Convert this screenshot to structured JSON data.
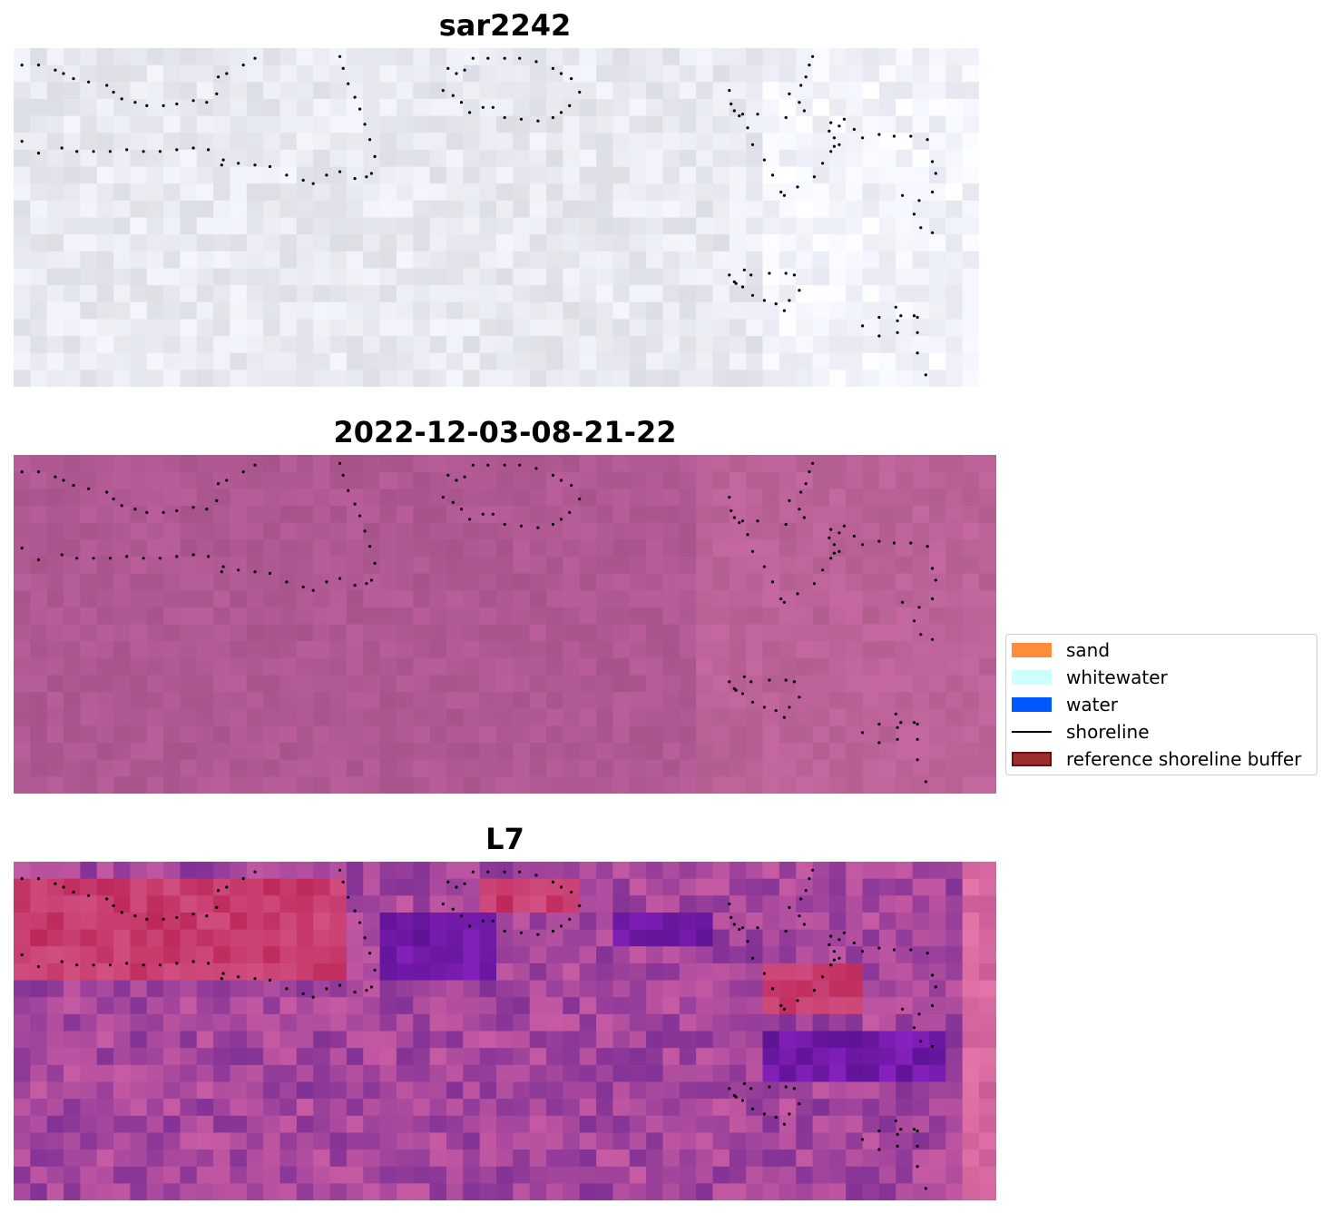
{
  "panels": [
    {
      "title": "sar2242",
      "palette": "sar"
    },
    {
      "title": "2022-12-03-08-21-22",
      "palette": "rgb"
    },
    {
      "title": "L7",
      "palette": "l7"
    }
  ],
  "legend": {
    "items": [
      {
        "label": "sand",
        "kind": "patch",
        "color": "#ff8c3d"
      },
      {
        "label": "whitewater",
        "kind": "patch",
        "color": "#ccffff"
      },
      {
        "label": "water",
        "kind": "patch",
        "color": "#0058ff"
      },
      {
        "label": "shoreline",
        "kind": "line",
        "color": "#000000"
      },
      {
        "label": "reference shoreline buffer",
        "kind": "patch",
        "color": "#9b2d2d",
        "edge": "#6a0f0f"
      }
    ]
  },
  "chart_data": {
    "type": "heatmap",
    "grid_cols": 58,
    "grid_rows": 20,
    "axes_visible": false,
    "shoreline_points": [
      [
        0.5,
        1
      ],
      [
        1.5,
        1
      ],
      [
        2.5,
        1.3
      ],
      [
        3,
        1.5
      ],
      [
        3.6,
        1.8
      ],
      [
        4.5,
        2
      ],
      [
        5.6,
        2.2
      ],
      [
        6,
        2.6
      ],
      [
        6.5,
        3
      ],
      [
        7.3,
        3.2
      ],
      [
        8,
        3.4
      ],
      [
        9,
        3.4
      ],
      [
        9.8,
        3.3
      ],
      [
        10.8,
        3.1
      ],
      [
        11.6,
        3.2
      ],
      [
        12.2,
        2.7
      ],
      [
        12.3,
        1.7
      ],
      [
        12.8,
        1.5
      ],
      [
        13.8,
        1.0
      ],
      [
        14.5,
        0.6
      ],
      [
        19.6,
        0.5
      ],
      [
        19.8,
        1.2
      ],
      [
        20.1,
        2.1
      ],
      [
        20.5,
        2.9
      ],
      [
        20.8,
        3.6
      ],
      [
        21.1,
        4.5
      ],
      [
        21.4,
        5.4
      ],
      [
        21.7,
        6.4
      ],
      [
        21.5,
        7.4
      ],
      [
        21.2,
        7.6
      ],
      [
        20.5,
        7.7
      ],
      [
        19.6,
        7.3
      ],
      [
        18.8,
        7.5
      ],
      [
        18,
        8.0
      ],
      [
        17.4,
        7.8
      ],
      [
        16.4,
        7.5
      ],
      [
        15.4,
        7.0
      ],
      [
        14.5,
        6.9
      ],
      [
        13.5,
        6.8
      ],
      [
        12.6,
        6.6
      ],
      [
        12.5,
        6.9
      ],
      [
        11.7,
        6.0
      ],
      [
        10.8,
        5.9
      ],
      [
        9.8,
        6.0
      ],
      [
        8.8,
        6.1
      ],
      [
        7.8,
        6.1
      ],
      [
        6.8,
        6.0
      ],
      [
        5.8,
        6.1
      ],
      [
        4.8,
        6.1
      ],
      [
        3.8,
        6.1
      ],
      [
        2.9,
        5.9
      ],
      [
        1.5,
        6.2
      ],
      [
        0.5,
        5.5
      ],
      [
        26.1,
        1.2
      ],
      [
        26.6,
        1.5
      ],
      [
        27.1,
        1.3
      ],
      [
        27.6,
        0.6
      ],
      [
        28.5,
        0.6
      ],
      [
        29.5,
        0.6
      ],
      [
        30.4,
        0.6
      ],
      [
        31.4,
        0.8
      ],
      [
        32.4,
        1.2
      ],
      [
        32.9,
        1.5
      ],
      [
        33.5,
        1.8
      ],
      [
        34,
        2.6
      ],
      [
        33.4,
        3.4
      ],
      [
        32.9,
        3.8
      ],
      [
        32.4,
        4.1
      ],
      [
        31.5,
        4.3
      ],
      [
        30.5,
        4.2
      ],
      [
        29.5,
        4.1
      ],
      [
        28.8,
        3.5
      ],
      [
        28.2,
        3.5
      ],
      [
        27.4,
        3.8
      ],
      [
        26.9,
        3.2
      ],
      [
        26.4,
        2.8
      ],
      [
        25.8,
        2.5
      ],
      [
        43,
        2.5
      ],
      [
        43.1,
        3.3
      ],
      [
        43.6,
        4.0
      ],
      [
        44.1,
        4.7
      ],
      [
        44.4,
        5.7
      ],
      [
        45.1,
        6.6
      ],
      [
        45.6,
        7.5
      ],
      [
        46.1,
        8.5
      ],
      [
        46.3,
        8.7
      ],
      [
        47.1,
        8.2
      ],
      [
        48.1,
        7.6
      ],
      [
        48.6,
        6.8
      ],
      [
        49.1,
        6.1
      ],
      [
        49.3,
        5.3
      ],
      [
        49.6,
        4.6
      ],
      [
        49.9,
        4.2
      ],
      [
        50.5,
        4.8
      ],
      [
        51,
        5.3
      ],
      [
        52,
        5.1
      ],
      [
        52.9,
        5.2
      ],
      [
        53.9,
        5.2
      ],
      [
        54.9,
        5.4
      ],
      [
        55.2,
        6.7
      ],
      [
        55.4,
        7.4
      ],
      [
        55.2,
        8.5
      ],
      [
        54.4,
        9.0
      ],
      [
        54.1,
        9.8
      ],
      [
        54.5,
        10.6
      ],
      [
        55.2,
        10.9
      ],
      [
        53.4,
        8.7
      ],
      [
        49.3,
        5.8
      ],
      [
        49.6,
        5.7
      ],
      [
        49,
        4.9
      ],
      [
        49.1,
        4.4
      ],
      [
        47.5,
        3.7
      ],
      [
        47.2,
        3.2
      ],
      [
        46.4,
        4.1
      ],
      [
        44.7,
        3.9
      ],
      [
        43.8,
        3.9
      ],
      [
        43.3,
        3.7
      ],
      [
        46.6,
        2.7
      ],
      [
        47.3,
        2.2
      ],
      [
        47.6,
        1.7
      ],
      [
        47.8,
        1.0
      ],
      [
        48,
        0.5
      ]
    ],
    "shoreline_points_2": [
      [
        43,
        13.4
      ],
      [
        43.3,
        13.8
      ],
      [
        43.9,
        13.1
      ],
      [
        44.3,
        13.4
      ],
      [
        45.4,
        13.3
      ],
      [
        46.4,
        13.3
      ],
      [
        46.9,
        13.4
      ],
      [
        47.2,
        14.3
      ],
      [
        46.6,
        14.9
      ],
      [
        46.3,
        15.5
      ],
      [
        45.8,
        15.1
      ],
      [
        45.1,
        14.9
      ],
      [
        44.4,
        14.6
      ],
      [
        43.8,
        14.1
      ],
      [
        43.4,
        13.9
      ],
      [
        51,
        16.4
      ],
      [
        52,
        15.9
      ],
      [
        53,
        15.3
      ],
      [
        53.3,
        15.8
      ],
      [
        54.1,
        15.8
      ],
      [
        54.3,
        15.9
      ],
      [
        53.1,
        16.8
      ],
      [
        52,
        17.0
      ],
      [
        54.3,
        16.8
      ],
      [
        54.3,
        18.0
      ],
      [
        54.8,
        19.3
      ],
      [
        53.1,
        16.1
      ]
    ]
  }
}
